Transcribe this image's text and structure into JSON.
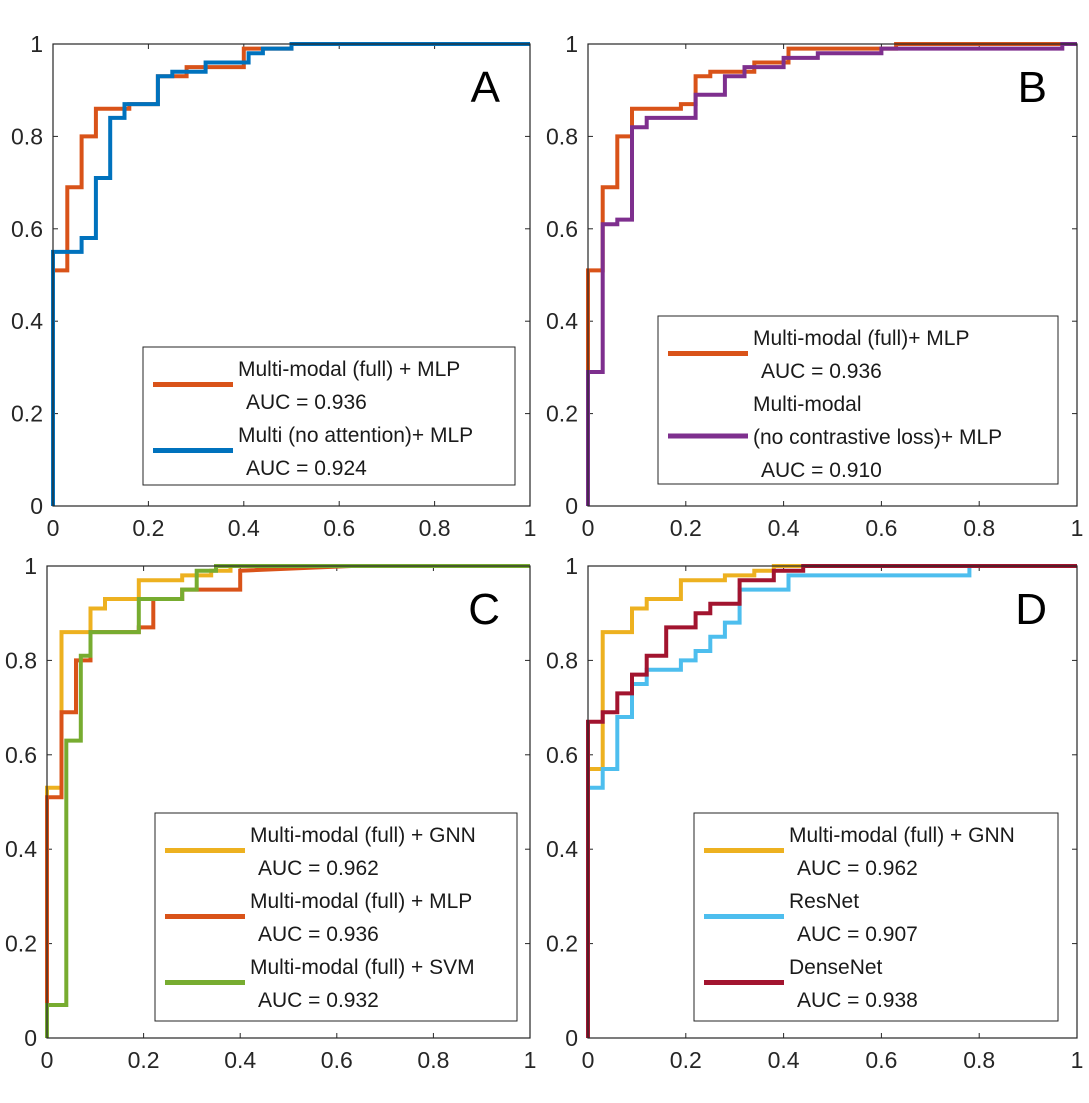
{
  "chart_data": [
    {
      "type": "line",
      "panel": "A",
      "title": "",
      "xlabel": "",
      "ylabel": "",
      "xlim": [
        0,
        1
      ],
      "ylim": [
        0,
        1
      ],
      "xticks": [
        "0",
        "0.2",
        "0.4",
        "0.6",
        "0.8",
        "1"
      ],
      "yticks": [
        "0",
        "0.2",
        "0.4",
        "0.6",
        "0.8",
        "1"
      ],
      "legend_position": "bottom-right",
      "series": [
        {
          "name": "Multi-modal (full) + MLP",
          "auc_label": "AUC = 0.936",
          "color": "#D95319",
          "x": [
            0,
            0,
            0.03,
            0.03,
            0.06,
            0.06,
            0.09,
            0.09,
            0.16,
            0.16,
            0.22,
            0.22,
            0.28,
            0.28,
            0.4,
            0.4,
            0.5,
            0.5,
            0.63
          ],
          "y": [
            0,
            0.51,
            0.51,
            0.69,
            0.69,
            0.8,
            0.8,
            0.86,
            0.86,
            0.87,
            0.87,
            0.93,
            0.93,
            0.95,
            0.95,
            0.99,
            0.99,
            1.0,
            1.0
          ]
        },
        {
          "name": "Multi (no attention)+ MLP",
          "auc_label": "AUC = 0.924",
          "color": "#0072BD",
          "x": [
            0,
            0,
            0.06,
            0.06,
            0.09,
            0.09,
            0.12,
            0.12,
            0.15,
            0.15,
            0.22,
            0.22,
            0.25,
            0.25,
            0.32,
            0.32,
            0.41,
            0.41,
            0.44,
            0.44,
            0.5,
            0.5,
            1.0
          ],
          "y": [
            0,
            0.55,
            0.55,
            0.58,
            0.58,
            0.71,
            0.71,
            0.84,
            0.84,
            0.87,
            0.87,
            0.93,
            0.93,
            0.94,
            0.94,
            0.96,
            0.96,
            0.98,
            0.98,
            0.99,
            0.99,
            1.0,
            1.0
          ]
        }
      ]
    },
    {
      "type": "line",
      "panel": "B",
      "title": "",
      "xlabel": "",
      "ylabel": "",
      "xlim": [
        0,
        1
      ],
      "ylim": [
        0,
        1
      ],
      "xticks": [
        "0",
        "0.2",
        "0.4",
        "0.6",
        "0.8",
        "1"
      ],
      "yticks": [
        "0",
        "0.2",
        "0.4",
        "0.6",
        "0.8",
        "1"
      ],
      "legend_position": "bottom-right",
      "series": [
        {
          "name": "Multi-modal (full)+ MLP",
          "auc_label": "AUC = 0.936",
          "color": "#D95319",
          "x": [
            0,
            0,
            0.03,
            0.03,
            0.06,
            0.06,
            0.09,
            0.09,
            0.19,
            0.19,
            0.22,
            0.22,
            0.25,
            0.25,
            0.34,
            0.34,
            0.41,
            0.41,
            0.63,
            0.63,
            1.0
          ],
          "y": [
            0,
            0.51,
            0.51,
            0.69,
            0.69,
            0.8,
            0.8,
            0.86,
            0.86,
            0.87,
            0.87,
            0.93,
            0.93,
            0.94,
            0.94,
            0.96,
            0.96,
            0.99,
            0.99,
            1.0,
            1.0
          ]
        },
        {
          "name": "Multi-modal (no contrastive loss)+ MLP",
          "legend_lines": [
            "Multi-modal",
            "(no contrastive loss)+ MLP"
          ],
          "auc_label": "AUC = 0.910",
          "color": "#7E2F8E",
          "x": [
            0,
            0,
            0.03,
            0.03,
            0.06,
            0.06,
            0.09,
            0.09,
            0.12,
            0.12,
            0.22,
            0.22,
            0.28,
            0.28,
            0.32,
            0.32,
            0.4,
            0.4,
            0.47,
            0.47,
            0.6,
            0.6,
            0.97,
            0.97,
            1.0
          ],
          "y": [
            0,
            0.29,
            0.29,
            0.61,
            0.61,
            0.62,
            0.62,
            0.82,
            0.82,
            0.84,
            0.84,
            0.89,
            0.89,
            0.93,
            0.93,
            0.95,
            0.95,
            0.97,
            0.97,
            0.98,
            0.98,
            0.99,
            0.99,
            1.0,
            1.0
          ]
        }
      ]
    },
    {
      "type": "line",
      "panel": "C",
      "title": "",
      "xlabel": "",
      "ylabel": "",
      "xlim": [
        0,
        1
      ],
      "ylim": [
        0,
        1
      ],
      "xticks": [
        "0",
        "0.2",
        "0.4",
        "0.6",
        "0.8",
        "1"
      ],
      "yticks": [
        "0",
        "0.2",
        "0.4",
        "0.6",
        "0.8",
        "1"
      ],
      "legend_position": "bottom-right",
      "series": [
        {
          "name": "Multi-modal (full) + GNN",
          "auc_label": "AUC = 0.962",
          "color": "#EDB120",
          "x": [
            0,
            0,
            0.03,
            0.03,
            0.09,
            0.09,
            0.12,
            0.12,
            0.19,
            0.19,
            0.28,
            0.28,
            0.34,
            0.34,
            0.38,
            0.38,
            0.62
          ],
          "y": [
            0,
            0.53,
            0.53,
            0.86,
            0.86,
            0.91,
            0.91,
            0.93,
            0.93,
            0.97,
            0.97,
            0.98,
            0.98,
            0.99,
            0.99,
            1.0,
            1.0
          ]
        },
        {
          "name": "Multi-modal (full) + MLP",
          "auc_label": "AUC = 0.936",
          "color": "#D95319",
          "x": [
            0,
            0,
            0.03,
            0.03,
            0.06,
            0.06,
            0.09,
            0.09,
            0.19,
            0.19,
            0.22,
            0.22,
            0.28,
            0.28,
            0.4,
            0.4,
            0.63
          ],
          "y": [
            0.07,
            0.51,
            0.51,
            0.69,
            0.69,
            0.8,
            0.8,
            0.86,
            0.86,
            0.87,
            0.87,
            0.93,
            0.93,
            0.95,
            0.95,
            0.99,
            1.0
          ]
        },
        {
          "name": "Multi-modal (full) + SVM",
          "auc_label": "AUC = 0.932",
          "color": "#77AC30",
          "x": [
            0,
            0,
            0.04,
            0.04,
            0.07,
            0.07,
            0.09,
            0.09,
            0.19,
            0.19,
            0.28,
            0.28,
            0.31,
            0.31,
            0.35,
            0.35,
            1.0
          ],
          "y": [
            0,
            0.07,
            0.07,
            0.63,
            0.63,
            0.81,
            0.81,
            0.86,
            0.86,
            0.93,
            0.93,
            0.95,
            0.95,
            0.99,
            0.99,
            1.0,
            1.0
          ]
        }
      ]
    },
    {
      "type": "line",
      "panel": "D",
      "title": "",
      "xlabel": "",
      "ylabel": "",
      "xlim": [
        0,
        1
      ],
      "ylim": [
        0,
        1
      ],
      "xticks": [
        "0",
        "0.2",
        "0.4",
        "0.6",
        "0.8",
        "1"
      ],
      "yticks": [
        "0",
        "0.2",
        "0.4",
        "0.6",
        "0.8",
        "1"
      ],
      "legend_position": "bottom-right",
      "series": [
        {
          "name": "Multi-modal (full) + GNN",
          "auc_label": "AUC = 0.962",
          "color": "#EDB120",
          "x": [
            0,
            0,
            0.03,
            0.03,
            0.09,
            0.09,
            0.12,
            0.12,
            0.19,
            0.19,
            0.28,
            0.28,
            0.34,
            0.34,
            0.38,
            0.38,
            0.53
          ],
          "y": [
            0,
            0.57,
            0.57,
            0.86,
            0.86,
            0.91,
            0.91,
            0.93,
            0.93,
            0.97,
            0.97,
            0.98,
            0.98,
            0.99,
            0.99,
            1.0,
            1.0
          ]
        },
        {
          "name": "ResNet",
          "auc_label": "AUC = 0.907",
          "color": "#4DBEEE",
          "x": [
            0,
            0,
            0.03,
            0.03,
            0.06,
            0.06,
            0.09,
            0.09,
            0.12,
            0.12,
            0.19,
            0.19,
            0.22,
            0.22,
            0.25,
            0.25,
            0.28,
            0.28,
            0.31,
            0.31,
            0.41,
            0.41,
            0.78,
            0.78,
            1.0
          ],
          "y": [
            0,
            0.53,
            0.53,
            0.57,
            0.57,
            0.68,
            0.68,
            0.75,
            0.75,
            0.78,
            0.78,
            0.8,
            0.8,
            0.82,
            0.82,
            0.85,
            0.85,
            0.88,
            0.88,
            0.95,
            0.95,
            0.98,
            0.98,
            1.0,
            1.0
          ]
        },
        {
          "name": "DenseNet",
          "auc_label": "AUC = 0.938",
          "color": "#A2142F",
          "x": [
            0,
            0,
            0.03,
            0.03,
            0.06,
            0.06,
            0.09,
            0.09,
            0.12,
            0.12,
            0.16,
            0.16,
            0.22,
            0.22,
            0.25,
            0.25,
            0.31,
            0.31,
            0.38,
            0.38,
            0.44,
            0.44,
            1.0
          ],
          "y": [
            0,
            0.67,
            0.67,
            0.69,
            0.69,
            0.73,
            0.73,
            0.77,
            0.77,
            0.81,
            0.81,
            0.87,
            0.87,
            0.9,
            0.9,
            0.92,
            0.92,
            0.97,
            0.97,
            0.99,
            0.99,
            1.0,
            1.0
          ]
        }
      ]
    }
  ]
}
